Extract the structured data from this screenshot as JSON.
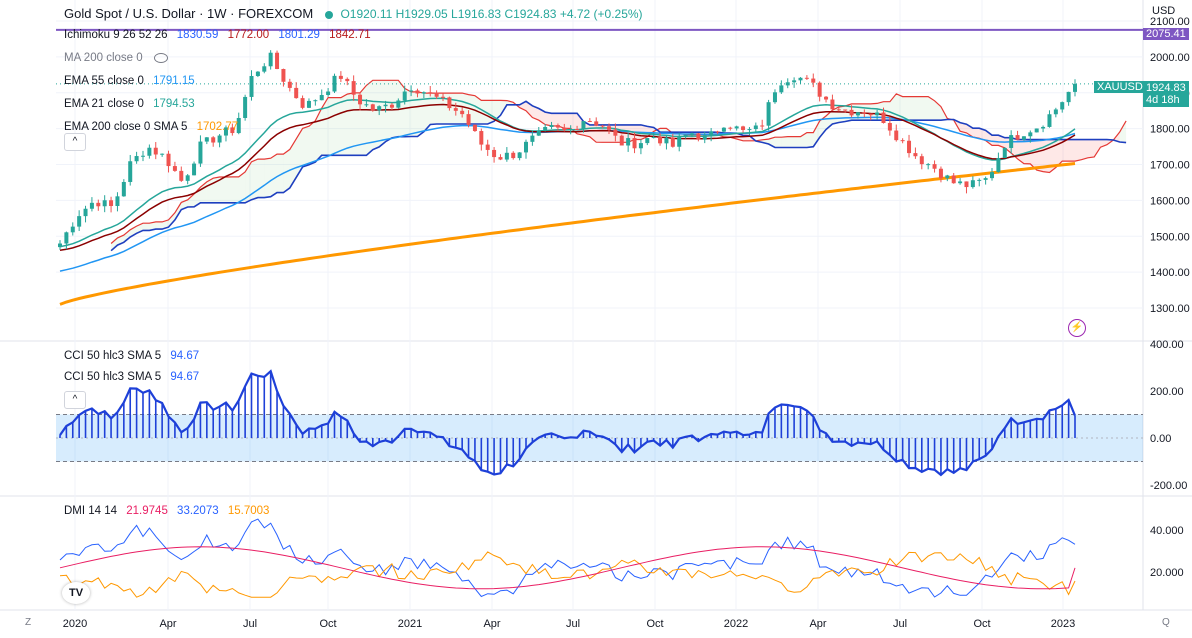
{
  "header": {
    "symbol_title": "Gold Spot / U.S. Dollar · 1W · FOREXCOM",
    "open": "O1920.11",
    "high": "H1929.05",
    "low": "L1916.83",
    "close": "C1924.83",
    "change": "+4.72 (+0.25%)"
  },
  "indicators": [
    {
      "label": "Ichimoku 9 26 52 26",
      "values": [
        "1830.59",
        "1772.00",
        "1801.29",
        "1842.71"
      ],
      "colors": [
        "#2962ff",
        "#b71c1c",
        "#2962ff",
        "#b71c1c"
      ]
    },
    {
      "label": "MA 200 close 0",
      "values": [],
      "colors": []
    },
    {
      "label": "EMA 55 close 0",
      "values": [
        "1791.15"
      ],
      "colors": [
        "#2196f3"
      ]
    },
    {
      "label": "EMA 21 close 0",
      "values": [
        "1794.53"
      ],
      "colors": [
        "#26a69a"
      ]
    },
    {
      "label": "EMA 200 close 0 SMA 5",
      "values": [
        "1702.77"
      ],
      "colors": [
        "#ff9800"
      ]
    }
  ],
  "collapse_label": "^",
  "cci_legend": [
    {
      "label": "CCI 50 hlc3 SMA 5",
      "value": "94.67"
    },
    {
      "label": "CCI 50 hlc3 SMA 5",
      "value": "94.67"
    }
  ],
  "dmi_legend": {
    "label": "DMI 14 14",
    "values": [
      "21.9745",
      "33.2073",
      "15.7003"
    ],
    "colors": [
      "#e91e63",
      "#2962ff",
      "#ff9800"
    ]
  },
  "price_axis": {
    "currency": "USD",
    "labels": [
      "2100.00",
      "2000.00",
      "1900.00",
      "1800.00",
      "1700.00",
      "1600.00",
      "1500.00",
      "1400.00",
      "1300.00"
    ],
    "tag_2075": "2075.41",
    "tag_price": "1924.83",
    "tag_time": "4d 18h",
    "symbol_tag": "XAUUSD"
  },
  "cci_axis": {
    "labels": [
      "400.00",
      "200.00",
      "0.00",
      "-200.00"
    ]
  },
  "dmi_axis": {
    "labels": [
      "40.000",
      "20.000"
    ]
  },
  "time_axis": {
    "labels": [
      "2020",
      "Apr",
      "Jul",
      "Oct",
      "2021",
      "Apr",
      "Jul",
      "Oct",
      "2022",
      "Apr",
      "Jul",
      "Oct",
      "2023"
    ]
  },
  "corner_left": "Z",
  "corner_right": "Q",
  "colors": {
    "up": "#26a69a",
    "down": "#ef5350",
    "accent": "#7e57c2"
  },
  "chart_data": [
    {
      "type": "candlestick",
      "title": "Gold Spot / U.S. Dollar · 1W · FOREXCOM",
      "ylim": [
        1250,
        2110
      ],
      "x": [
        "2020",
        "Apr",
        "Jul",
        "Oct",
        "2021",
        "Apr",
        "Jul",
        "Oct",
        "2022",
        "Apr",
        "Jul",
        "Oct",
        "2023"
      ],
      "close_path": [
        1480,
        1560,
        1600,
        1580,
        1700,
        1750,
        1720,
        1650,
        1750,
        1780,
        1800,
        1950,
        2000,
        1920,
        1860,
        1900,
        1950,
        1880,
        1850,
        1870,
        1920,
        1900,
        1870,
        1840,
        1760,
        1720,
        1730,
        1770,
        1800,
        1790,
        1830,
        1810,
        1760,
        1760,
        1780,
        1750,
        1790,
        1770,
        1820,
        1790,
        1800,
        1930,
        1950,
        1920,
        1870,
        1850,
        1850,
        1830,
        1770,
        1720,
        1690,
        1650,
        1640,
        1660,
        1760,
        1790,
        1810,
        1860,
        1924.83
      ],
      "ema21_last": 1794.53,
      "ema55_last": 1791.15,
      "ema200_last": 1702.77
    },
    {
      "type": "bar",
      "title": "CCI 50 hlc3 SMA 5",
      "ylim": [
        -230,
        420
      ],
      "last": 94.67
    },
    {
      "type": "line",
      "title": "DMI 14 14",
      "ylim": [
        5,
        50
      ],
      "series": [
        {
          "name": "21.9745",
          "last": 21.9745
        },
        {
          "name": "33.2073",
          "last": 33.2073
        },
        {
          "name": "15.7003",
          "last": 15.7003
        }
      ]
    }
  ]
}
